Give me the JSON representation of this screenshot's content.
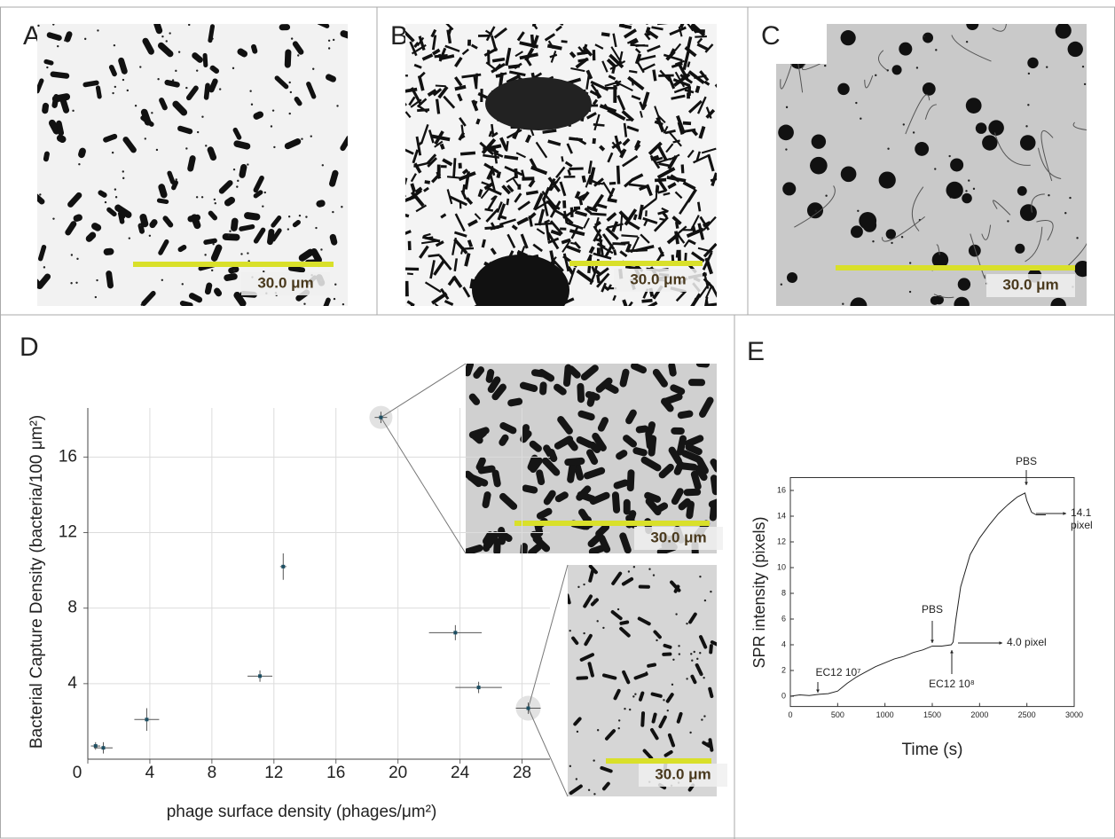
{
  "panel_labels": [
    "A",
    "B",
    "C",
    "D",
    "E"
  ],
  "scale_bars": [
    "30.0 μm",
    "30.0 μm",
    "30.0 μm",
    "30.0 μm",
    "30.0 μm"
  ],
  "chart_data": [
    {
      "type": "errorscatter",
      "x_label": "phage surface density (phages/μm²)",
      "y_label": "Bacterial Capture Density (bacteria/100 μm²)",
      "x": [
        0.5,
        1.0,
        3.8,
        11.1,
        12.6,
        18.9,
        23.7,
        25.2,
        28.4
      ],
      "values": [
        0.7,
        0.6,
        2.1,
        4.4,
        10.2,
        18.1,
        6.7,
        3.8,
        2.7
      ],
      "xerr": [
        0.3,
        0.6,
        0.8,
        0.8,
        0.2,
        0.4,
        1.7,
        1.5,
        0.8
      ],
      "yerr": [
        0.2,
        0.3,
        0.6,
        0.3,
        0.7,
        0.3,
        0.4,
        0.3,
        0.3
      ],
      "color": "#1d4f63",
      "xlim": [
        0,
        29.8
      ],
      "ylim": [
        0,
        18.6
      ],
      "xticks": [
        0,
        4,
        8,
        12,
        16,
        20,
        24,
        28
      ],
      "yticks": [
        4,
        8,
        12,
        16
      ],
      "grid": true
    },
    {
      "type": "line",
      "x_label": "Time (s)",
      "y_label": "SPR intensity (pixels)",
      "x": [
        0,
        100,
        200,
        300,
        400,
        500,
        600,
        700,
        800,
        900,
        1000,
        1100,
        1200,
        1300,
        1400,
        1500,
        1600,
        1700,
        1720,
        1750,
        1800,
        1900,
        2000,
        2100,
        2200,
        2300,
        2400,
        2480,
        2500,
        2550,
        2600,
        2700
      ],
      "values": [
        0,
        0.1,
        0.05,
        0.15,
        0.2,
        0.4,
        1.0,
        1.5,
        1.9,
        2.3,
        2.6,
        2.9,
        3.1,
        3.4,
        3.6,
        3.9,
        3.9,
        4.0,
        4.2,
        6.0,
        8.5,
        11.0,
        12.3,
        13.3,
        14.2,
        14.9,
        15.5,
        15.8,
        15.2,
        14.3,
        14.1,
        14.1
      ],
      "color": "#222222",
      "xlim": [
        0,
        3000
      ],
      "ylim": [
        -0.8,
        17
      ],
      "xticks": [
        0,
        500,
        1000,
        1500,
        2000,
        2500,
        3000
      ],
      "yticks": [
        0,
        2,
        4,
        6,
        8,
        10,
        12,
        14,
        16
      ],
      "annotations": [
        "EC12 10⁷",
        "PBS",
        "4.0 pixel",
        "EC12 10⁸",
        "PBS",
        "14.1",
        "pixel"
      ]
    }
  ]
}
